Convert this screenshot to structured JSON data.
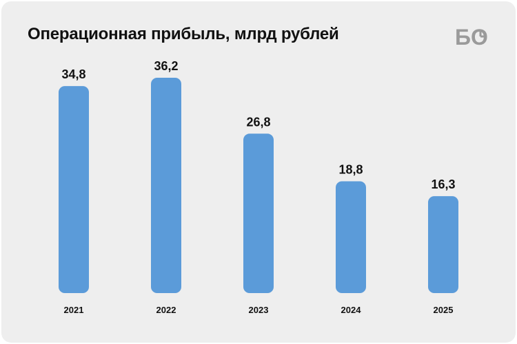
{
  "header": {
    "title": "Операционная прибыль, млрд рублей",
    "logo_text": "БО"
  },
  "colors": {
    "background": "#eeeeee",
    "bar": "#5b9bd9",
    "text": "#111111",
    "logo": "#9a9a9a"
  },
  "chart_data": {
    "type": "bar",
    "title": "Операционная прибыль, млрд рублей",
    "categories": [
      "2021",
      "2022",
      "2023",
      "2024",
      "2025"
    ],
    "values": [
      34.8,
      36.2,
      26.8,
      18.8,
      16.3
    ],
    "value_labels": [
      "34,8",
      "36,2",
      "26,8",
      "18,8",
      "16,3"
    ],
    "xlabel": "",
    "ylabel": "",
    "ylim": [
      0,
      36.2
    ],
    "grid": false,
    "legend": "none"
  }
}
